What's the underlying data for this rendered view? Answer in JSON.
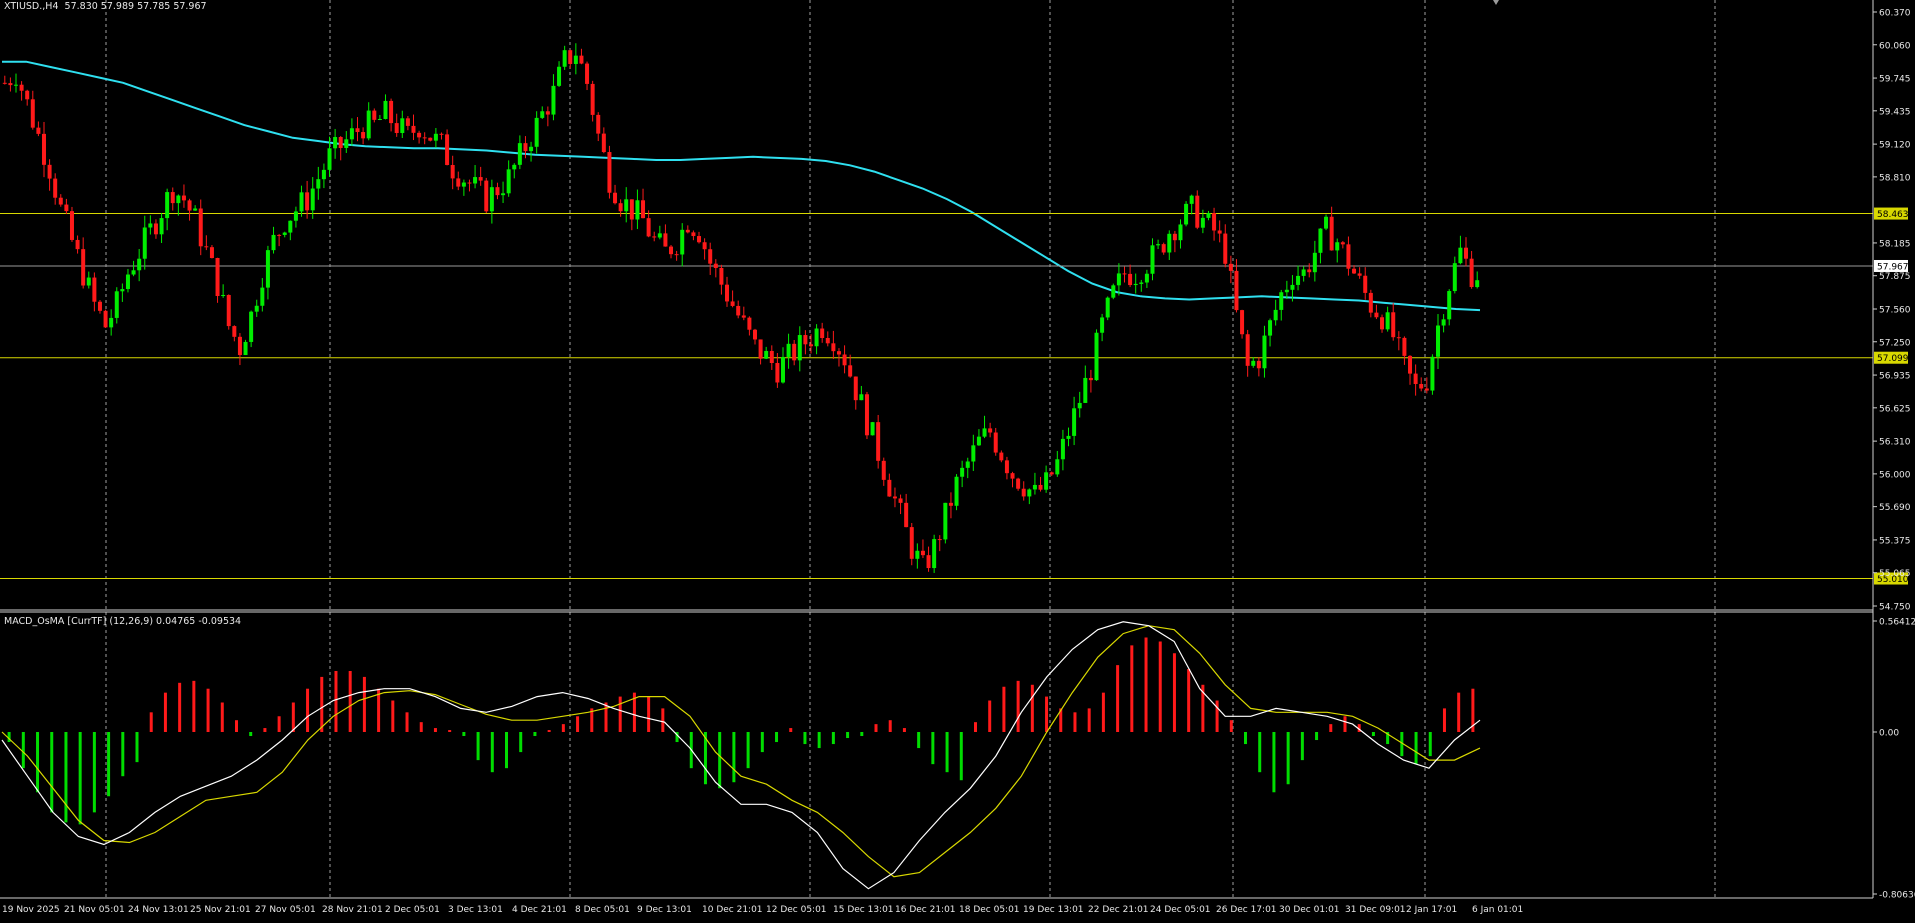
{
  "chart": {
    "symbol": "XTIUSD.",
    "timeframe": "H4",
    "ohlc_readout": "57.830 57.989 57.785 57.967",
    "indicator_label": "MACD_OsMA [CurrTF] (12,26,9) 0.04765 -0.09534",
    "colors": {
      "background": "#000000",
      "bull_candle": "#00ee00",
      "bear_candle": "#ff1a1a",
      "moving_average": "#2fe0f0",
      "level_line": "#d8d800",
      "macd_line": "#ffffff",
      "signal_line": "#d8d800",
      "hist_positive": "#ff1a1a",
      "hist_negative": "#00dd00",
      "grid": "#a0a0a0"
    }
  },
  "chart_data": [
    {
      "type": "candlestick",
      "title": "XTIUSD.,H4",
      "price_ticks": [
        "60.370",
        "60.060",
        "59.745",
        "59.435",
        "59.120",
        "58.810",
        "58.185",
        "57.875",
        "57.560",
        "57.250",
        "56.935",
        "56.625",
        "56.310",
        "56.000",
        "55.690",
        "55.375",
        "55.065",
        "54.750"
      ],
      "ylim": [
        54.75,
        60.37
      ],
      "current_price": "57.967",
      "levels": [
        "58.463",
        "57.099",
        "55.010"
      ],
      "time_labels": [
        "19 Nov 2025",
        "21 Nov 05:01",
        "24 Nov 13:01",
        "25 Nov 21:01",
        "27 Nov 05:01",
        "28 Nov 21:01",
        "2 Dec 05:01",
        "3 Dec 13:01",
        "4 Dec 21:01",
        "8 Dec 05:01",
        "9 Dec 13:01",
        "10 Dec 21:01",
        "12 Dec 05:01",
        "15 Dec 13:01",
        "16 Dec 21:01",
        "18 Dec 05:01",
        "19 Dec 13:01",
        "22 Dec 21:01",
        "24 Dec 05:01",
        "26 Dec 17:01",
        "30 Dec 01:01",
        "31 Dec 09:01",
        "2 Jan 17:01",
        "6 Jan 01:01"
      ],
      "close_path": [
        59.7,
        59.8,
        59.5,
        59.2,
        58.9,
        58.5,
        58.2,
        57.9,
        57.6,
        57.4,
        57.6,
        57.9,
        58.1,
        58.3,
        58.5,
        58.7,
        58.6,
        58.4,
        58.1,
        57.8,
        57.4,
        57.2,
        57.5,
        57.9,
        58.2,
        58.4,
        58.5,
        58.6,
        58.8,
        59.0,
        59.1,
        59.2,
        59.3,
        59.3,
        59.4,
        59.3,
        59.2,
        59.3,
        59.2,
        59.1,
        58.9,
        58.8,
        58.7,
        58.6,
        58.7,
        58.8,
        59.0,
        59.2,
        59.4,
        59.6,
        59.9,
        60.0,
        59.7,
        59.2,
        58.8,
        58.6,
        58.5,
        58.4,
        58.2,
        58.1,
        58.2,
        58.4,
        58.3,
        58.0,
        57.8,
        57.6,
        57.4,
        57.2,
        57.1,
        57.0,
        57.1,
        57.2,
        57.3,
        57.4,
        57.3,
        57.1,
        56.8,
        56.5,
        56.2,
        55.9,
        55.6,
        55.3,
        55.1,
        55.3,
        55.6,
        55.9,
        56.1,
        56.3,
        56.4,
        56.2,
        56.0,
        55.9,
        55.8,
        55.9,
        56.1,
        56.4,
        56.7,
        57.0,
        57.4,
        57.7,
        57.9,
        57.9,
        58.0,
        58.1,
        58.3,
        58.4,
        58.5,
        58.4,
        58.3,
        58.1,
        57.5,
        57.0,
        57.1,
        57.4,
        57.7,
        57.9,
        57.9,
        58.1,
        58.3,
        58.2,
        58.0,
        57.8,
        57.6,
        57.5,
        57.3,
        57.0,
        56.8,
        56.9,
        57.4,
        57.8,
        58.1,
        57.9
      ],
      "moving_average": [
        59.9,
        59.9,
        59.85,
        59.8,
        59.75,
        59.7,
        59.62,
        59.54,
        59.46,
        59.38,
        59.3,
        59.24,
        59.18,
        59.15,
        59.12,
        59.1,
        59.09,
        59.08,
        59.08,
        59.07,
        59.06,
        59.04,
        59.02,
        59.01,
        59.0,
        58.99,
        58.98,
        58.97,
        58.97,
        58.98,
        58.99,
        59.0,
        58.99,
        58.98,
        58.96,
        58.92,
        58.86,
        58.78,
        58.7,
        58.6,
        58.48,
        58.34,
        58.2,
        58.06,
        57.92,
        57.8,
        57.72,
        57.68,
        57.66,
        57.65,
        57.66,
        57.67,
        57.68,
        57.67,
        57.66,
        57.65,
        57.64,
        57.62,
        57.6,
        57.58,
        57.56,
        57.55
      ],
      "series": [
        {
          "name": "XTIUSD.,H4"
        }
      ]
    },
    {
      "type": "macd",
      "title": "MACD_OsMA [CurrTF] (12,26,9) 0.04765 -0.09534",
      "ticks": [
        "0.56412",
        "0.00",
        "-0.80636"
      ],
      "ylim": [
        -0.80636,
        0.56412
      ],
      "histogram": [
        -0.05,
        -0.18,
        -0.3,
        -0.4,
        -0.45,
        -0.46,
        -0.4,
        -0.32,
        -0.22,
        -0.15,
        0.1,
        0.2,
        0.25,
        0.26,
        0.22,
        0.15,
        0.06,
        -0.02,
        0.02,
        0.08,
        0.15,
        0.22,
        0.28,
        0.31,
        0.31,
        0.28,
        0.22,
        0.16,
        0.1,
        0.05,
        0.02,
        0.01,
        -0.02,
        -0.14,
        -0.2,
        -0.18,
        -0.1,
        -0.02,
        0.01,
        0.04,
        0.08,
        0.12,
        0.15,
        0.18,
        0.2,
        0.18,
        0.12,
        -0.05,
        -0.18,
        -0.26,
        -0.28,
        -0.25,
        -0.18,
        -0.1,
        -0.05,
        0.02,
        -0.06,
        -0.08,
        -0.06,
        -0.03,
        -0.02,
        0.04,
        0.06,
        0.02,
        -0.08,
        -0.16,
        -0.2,
        -0.24,
        0.05,
        0.16,
        0.23,
        0.26,
        0.24,
        0.18,
        0.12,
        0.1,
        0.12,
        0.2,
        0.34,
        0.44,
        0.48,
        0.46,
        0.4,
        0.32,
        0.24,
        0.16,
        0.06,
        -0.06,
        -0.2,
        -0.3,
        -0.26,
        -0.14,
        -0.04,
        0.04,
        0.08,
        0.04,
        -0.02,
        -0.06,
        -0.12,
        -0.16,
        -0.12,
        0.12,
        0.2,
        0.22
      ],
      "macd_line": [
        -0.04,
        -0.22,
        -0.4,
        -0.52,
        -0.56,
        -0.5,
        -0.4,
        -0.32,
        -0.27,
        -0.22,
        -0.14,
        -0.04,
        0.08,
        0.16,
        0.2,
        0.22,
        0.22,
        0.18,
        0.12,
        0.1,
        0.13,
        0.18,
        0.2,
        0.17,
        0.12,
        0.08,
        0.05,
        -0.08,
        -0.25,
        -0.36,
        -0.36,
        -0.4,
        -0.5,
        -0.68,
        -0.78,
        -0.7,
        -0.54,
        -0.4,
        -0.28,
        -0.12,
        0.1,
        0.28,
        0.42,
        0.52,
        0.56,
        0.54,
        0.46,
        0.22,
        0.08,
        0.08,
        0.12,
        0.1,
        0.08,
        0.04,
        -0.06,
        -0.14,
        -0.18,
        -0.04,
        0.06
      ],
      "signal_line": [
        0.0,
        -0.12,
        -0.28,
        -0.44,
        -0.54,
        -0.55,
        -0.5,
        -0.42,
        -0.34,
        -0.32,
        -0.3,
        -0.2,
        -0.04,
        0.08,
        0.16,
        0.2,
        0.21,
        0.19,
        0.14,
        0.09,
        0.06,
        0.06,
        0.08,
        0.1,
        0.13,
        0.18,
        0.18,
        0.08,
        -0.1,
        -0.22,
        -0.26,
        -0.34,
        -0.4,
        -0.5,
        -0.62,
        -0.72,
        -0.7,
        -0.6,
        -0.5,
        -0.38,
        -0.22,
        0.0,
        0.2,
        0.38,
        0.5,
        0.54,
        0.52,
        0.4,
        0.24,
        0.12,
        0.1,
        0.1,
        0.1,
        0.08,
        0.02,
        -0.06,
        -0.14,
        -0.14,
        -0.08
      ],
      "series": [
        {
          "name": "MACD_OsMA [CurrTF]"
        }
      ]
    }
  ]
}
